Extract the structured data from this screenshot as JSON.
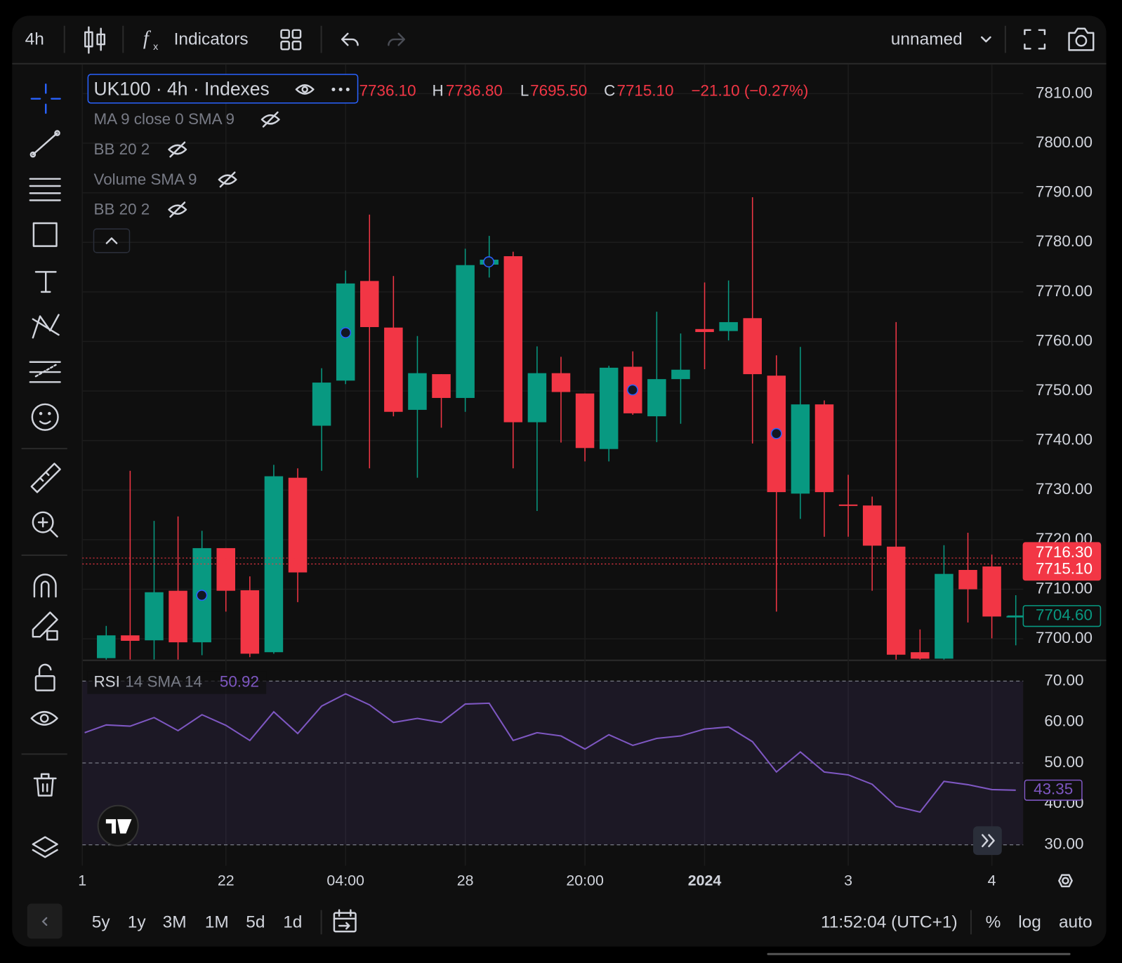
{
  "toolbar": {
    "interval": "4h",
    "indicators": "Indicators",
    "layout": "unnamed"
  },
  "legend": {
    "symbol": "UK100 · 4h · Indexes",
    "open": "7736.10",
    "high_label": "H",
    "high": "7736.80",
    "low_label": "L",
    "low": "7695.50",
    "close_label": "C",
    "close": "7715.10",
    "change": "−21.10 (−0.27%)",
    "indicators": [
      "MA 9 close 0 SMA 9",
      "BB 20 2",
      "Volume SMA 9",
      "BB 20 2"
    ]
  },
  "chart_data": [
    {
      "type": "candlestick",
      "categories": [
        "1",
        null,
        null,
        null,
        null,
        null,
        "22",
        null,
        null,
        null,
        null,
        "04:00",
        null,
        null,
        null,
        null,
        "28",
        null,
        null,
        null,
        null,
        "20:00",
        null,
        null,
        null,
        null,
        "2024",
        null,
        null,
        null,
        null,
        null,
        "3",
        null,
        null,
        null,
        null,
        null,
        "4",
        null
      ],
      "open": [
        null,
        7696.1,
        7700.7,
        7699.7,
        7709.7,
        7699.3,
        7718.3,
        7709.8,
        7697.3,
        7732.5,
        7743.0,
        7752.1,
        7772.2,
        7762.8,
        7746.2,
        7753.4,
        7748.6,
        7775.5,
        7777.2,
        7743.7,
        7753.6,
        7749.5,
        7738.3,
        7754.9,
        7744.9,
        7752.4,
        7762.5,
        7762.1,
        7764.7,
        7753.1,
        7729.3,
        7747.3,
        7727.1,
        7726.9,
        7718.6,
        7697.3,
        7696.0,
        7713.9,
        7714.6,
        7704.5
      ],
      "high": [
        null,
        7702.6,
        7733.9,
        7723.8,
        7724.7,
        7721.8,
        7718.3,
        7712.6,
        7735.1,
        7734.4,
        7754.6,
        7774.3,
        7785.6,
        7773.2,
        7761.1,
        7753.4,
        7778.7,
        7781.3,
        7778.1,
        7759.0,
        7756.9,
        7749.5,
        7755.1,
        7758.0,
        7766.0,
        7761.6,
        7771.9,
        7772.3,
        7789.1,
        7757.2,
        7758.9,
        7748.1,
        7733.1,
        7728.7,
        7763.9,
        7701.9,
        7718.9,
        7721.4,
        7717.0,
        7708.8
      ],
      "low": [
        null,
        7694.0,
        7695.8,
        7695.8,
        7695.0,
        7696.7,
        7705.5,
        7696.3,
        7697.0,
        7707.4,
        7733.9,
        7751.4,
        7734.4,
        7744.9,
        7732.5,
        7742.6,
        7745.8,
        7772.9,
        7734.4,
        7725.8,
        7739.6,
        7735.8,
        7735.8,
        7745.2,
        7739.7,
        7743.4,
        7754.4,
        7760.2,
        7739.4,
        7705.5,
        7724.2,
        7720.6,
        7720.6,
        7709.7,
        7695.0,
        7694.0,
        7694.0,
        7703.3,
        7700.1,
        7698.7
      ],
      "close": [
        null,
        7700.7,
        7699.6,
        7709.4,
        7699.3,
        7718.3,
        7709.7,
        7697.0,
        7732.8,
        7713.4,
        7751.7,
        7771.7,
        7762.9,
        7745.8,
        7753.6,
        7748.6,
        7775.4,
        7776.5,
        7743.7,
        7753.6,
        7749.8,
        7738.5,
        7754.7,
        7745.5,
        7752.4,
        7754.3,
        7761.9,
        7763.9,
        7753.4,
        7729.6,
        7747.3,
        7729.6,
        7727.0,
        7718.8,
        7696.8,
        7696.0,
        7713.1,
        7710.0,
        7704.5,
        7704.6
      ],
      "up_color": "#089981",
      "down_color": "#f23645",
      "ylim": [
        7695.8,
        7815.9
      ],
      "yticks": [
        {
          "value": 7700,
          "label": "7700.00"
        },
        {
          "value": 7710,
          "label": "7710.00"
        },
        {
          "value": 7720,
          "label": "7720.00"
        },
        {
          "value": 7730,
          "label": "7730.00"
        },
        {
          "value": 7740,
          "label": "7740.00"
        },
        {
          "value": 7750,
          "label": "7750.00"
        },
        {
          "value": 7760,
          "label": "7760.00"
        },
        {
          "value": 7770,
          "label": "7770.00"
        },
        {
          "value": 7780,
          "label": "7780.00"
        },
        {
          "value": 7790,
          "label": "7790.00"
        },
        {
          "value": 7800,
          "label": "7800.00"
        },
        {
          "value": 7810,
          "label": "7810.00"
        }
      ],
      "grid": true,
      "price_labels": [
        {
          "value": 7716.3,
          "label": "7716.30",
          "color": "#f23645",
          "filled": true
        },
        {
          "value": 7715.1,
          "label": "7715.10",
          "color": "#f23645",
          "filled": true
        },
        {
          "value": 7704.6,
          "label": "7704.60",
          "color": "#089981",
          "filled": false
        }
      ]
    },
    {
      "type": "line",
      "name": "RSI",
      "params": "14 SMA 14",
      "value_text": "50.92",
      "values": [
        57.4,
        59.3,
        59.0,
        61.1,
        57.9,
        61.8,
        59.2,
        55.5,
        62.5,
        57.2,
        63.9,
        66.9,
        64.2,
        59.9,
        60.9,
        59.9,
        64.4,
        64.6,
        55.5,
        57.4,
        56.6,
        53.4,
        56.9,
        54.3,
        56.0,
        56.6,
        58.3,
        58.8,
        55.2,
        47.8,
        52.7,
        47.8,
        47.1,
        44.8,
        39.4,
        38.0,
        45.5,
        44.7,
        43.5,
        43.35
      ],
      "color": "#7e57c2",
      "ylim": [
        24.9,
        74.9
      ],
      "yticks": [
        {
          "value": 30,
          "label": "30.00"
        },
        {
          "value": 40,
          "label": "40.00"
        },
        {
          "value": 50,
          "label": "50.00"
        },
        {
          "value": 60,
          "label": "60.00"
        },
        {
          "value": 70,
          "label": "70.00"
        }
      ],
      "band": [
        30,
        70
      ],
      "dashed_levels": [
        30,
        50,
        70
      ],
      "last_label": {
        "value": 43.35,
        "label": "43.35"
      }
    }
  ],
  "bottom_bar": {
    "ranges": [
      "5y",
      "1y",
      "3M",
      "1M",
      "5d",
      "1d"
    ],
    "time": "11:52:04 (UTC+1)",
    "percent": "%",
    "log": "log",
    "auto": "auto"
  }
}
